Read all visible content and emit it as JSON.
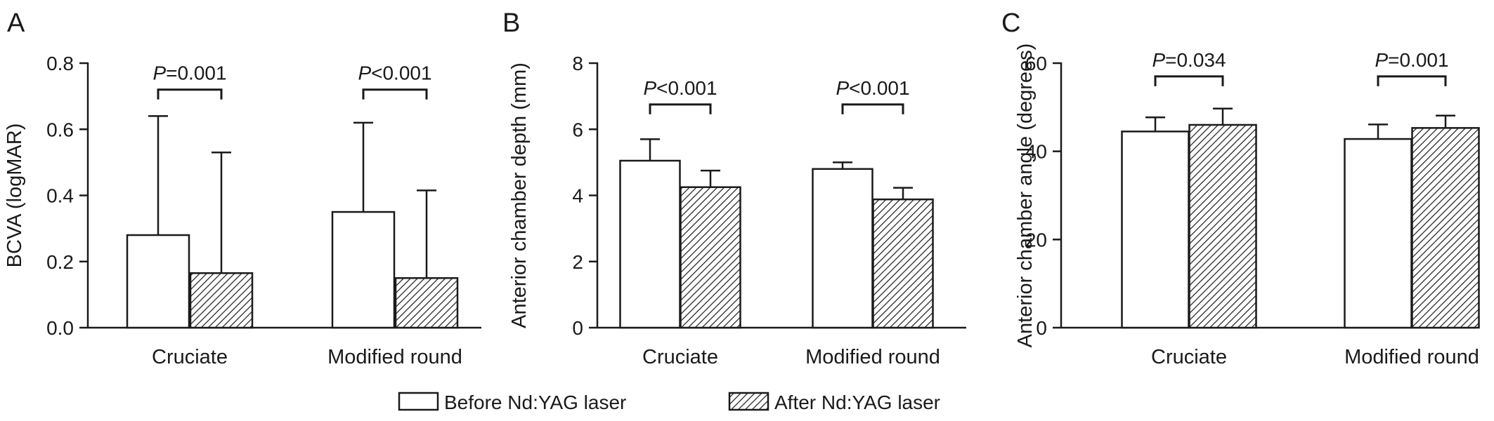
{
  "colors": {
    "bar_before": "#ffffff",
    "bar_after_hatch": "#1a1a1a",
    "axis": "#1a1a1a"
  },
  "legend": {
    "items": [
      {
        "label": "Before Nd:YAG laser",
        "style": "open"
      },
      {
        "label": "After Nd:YAG laser",
        "style": "hatched"
      }
    ],
    "position": "bottom-center"
  },
  "chart_data": [
    {
      "panel": "A",
      "type": "bar",
      "ylabel": "BCVA (logMAR)",
      "ylim": [
        0,
        0.8
      ],
      "yticks": [
        "0.0",
        "0.2",
        "0.4",
        "0.6",
        "0.8"
      ],
      "categories": [
        "Cruciate",
        "Modified round"
      ],
      "series": [
        {
          "name": "Before Nd:YAG laser",
          "values": [
            0.28,
            0.35
          ],
          "errors": [
            0.36,
            0.27
          ]
        },
        {
          "name": "After Nd:YAG laser",
          "values": [
            0.165,
            0.15
          ],
          "errors": [
            0.365,
            0.265
          ]
        }
      ],
      "annotations": [
        {
          "italic": "P",
          "text": "=0.001",
          "category": 0,
          "level": 0.72
        },
        {
          "italic": "P",
          "text": "<0.001",
          "category": 1,
          "level": 0.72
        }
      ]
    },
    {
      "panel": "B",
      "type": "bar",
      "ylabel": "Anterior chamber depth (mm)",
      "ylim": [
        0,
        8
      ],
      "yticks": [
        "0",
        "2",
        "4",
        "6",
        "8"
      ],
      "categories": [
        "Cruciate",
        "Modified round"
      ],
      "series": [
        {
          "name": "Before Nd:YAG laser",
          "values": [
            5.05,
            4.8
          ],
          "errors": [
            0.65,
            0.2
          ]
        },
        {
          "name": "After Nd:YAG laser",
          "values": [
            4.25,
            3.88
          ],
          "errors": [
            0.5,
            0.35
          ]
        }
      ],
      "annotations": [
        {
          "italic": "P",
          "text": "<0.001",
          "category": 0,
          "level": 6.75
        },
        {
          "italic": "P",
          "text": "<0.001",
          "category": 1,
          "level": 6.75
        }
      ]
    },
    {
      "panel": "C",
      "type": "bar",
      "ylabel": "Anterior chamber angle (degrees)",
      "ylim": [
        0,
        60
      ],
      "yticks": [
        "0",
        "20",
        "40",
        "60"
      ],
      "categories": [
        "Cruciate",
        "Modified round"
      ],
      "series": [
        {
          "name": "Before Nd:YAG laser",
          "values": [
            44.5,
            42.8
          ],
          "errors": [
            3.2,
            3.3
          ]
        },
        {
          "name": "After Nd:YAG laser",
          "values": [
            46.0,
            45.3
          ],
          "errors": [
            3.7,
            2.8
          ]
        }
      ],
      "annotations": [
        {
          "italic": "P",
          "text": "=0.034",
          "category": 0,
          "level": 57.0
        },
        {
          "italic": "P",
          "text": "=0.001",
          "category": 1,
          "level": 57.0
        }
      ]
    }
  ]
}
